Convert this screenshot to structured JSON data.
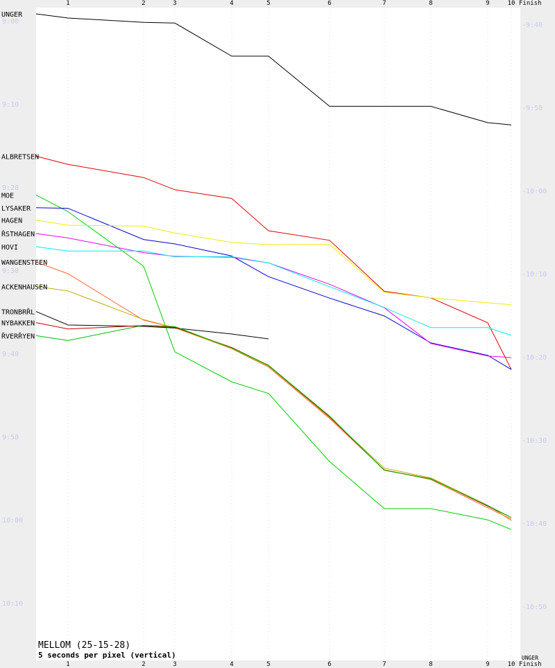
{
  "chart_data": {
    "type": "line",
    "title": "MELLOM (25-15-28)",
    "subtitle": "5 seconds per pixel (vertical)",
    "x_ticks": [
      "1",
      "2",
      "3",
      "4",
      "5",
      "6",
      "7",
      "8",
      "9",
      "10",
      "Finish"
    ],
    "y_left_ticks": [
      "9:00",
      "9:10",
      "9:20",
      "9:30",
      "9:40",
      "9:50",
      "10:00",
      "10:10"
    ],
    "y_right_ticks": [
      "9:40",
      "9:50",
      "10:00",
      "10:10",
      "10:20",
      "10:30",
      "10:40",
      "10:50"
    ],
    "y_left_range_seconds": [
      32300,
      36900
    ],
    "background_colors": {
      "page": "#ffffff",
      "margins": "#eeeeee",
      "grid": "#dddddd",
      "tick_text": "#c8c8ee"
    },
    "series": [
      {
        "name": "UNGER",
        "color": "#000000",
        "values": [
          32345,
          32375,
          32406,
          32411,
          32650,
          32650,
          33012,
          33012,
          33012,
          33130,
          33146
        ]
      },
      {
        "name": "ALBRETSEN",
        "color": "#dd0000",
        "values": [
          33372,
          33431,
          33526,
          33614,
          33677,
          33910,
          33979,
          34347,
          34394,
          34574,
          34911
        ]
      },
      {
        "name": "MOE",
        "color": "#00cc00",
        "values": [
          33652,
          33772,
          34166,
          34784,
          35000,
          35084,
          35575,
          35915,
          35915,
          35996,
          36066
        ]
      },
      {
        "name": "LYSAKER",
        "color": "#0000cc",
        "values": [
          33744,
          33748,
          33973,
          34005,
          34092,
          34241,
          34396,
          34525,
          34719,
          34809,
          34911
        ]
      },
      {
        "name": "HAGEN",
        "color": "#eeee00",
        "values": [
          33833,
          33870,
          33876,
          33926,
          33994,
          34010,
          34009,
          34354,
          34394,
          34430,
          34444
        ]
      },
      {
        "name": "ŘSTHAGEN",
        "color": "#ee00ee",
        "values": [
          33930,
          33962,
          34068,
          34095,
          34101,
          34142,
          34296,
          34466,
          34723,
          34814,
          34825
        ]
      },
      {
        "name": "HOVI",
        "color": "#00eeee",
        "values": [
          34025,
          34056,
          34056,
          34098,
          34096,
          34142,
          34314,
          34464,
          34609,
          34609,
          34665
        ]
      },
      {
        "name": "WANGENSTEEN",
        "color": "#ff6633",
        "values": [
          34136,
          34220,
          34555,
          34610,
          34761,
          34893,
          35264,
          35635,
          35705,
          35909,
          35991
        ]
      },
      {
        "name": "ACKENHAUSEN",
        "color": "#bbaa00",
        "values": [
          34312,
          34344,
          34551,
          34609,
          34758,
          34886,
          35256,
          35623,
          35693,
          35891,
          36001
        ]
      },
      {
        "name": "TRONBRŘL",
        "color": "#000000",
        "values": [
          34493,
          34590,
          34600,
          34612,
          34655,
          34690
        ]
      },
      {
        "name": "NYBAKKEN",
        "color": "#cc0000",
        "values": [
          34573,
          34619,
          34594,
          34607,
          34752,
          34881,
          35252,
          35638,
          35699,
          35898,
          35979
        ]
      },
      {
        "name": "ŘVERŘYEN",
        "color": "#00bb00",
        "values": [
          34667,
          34702,
          34592,
          34601,
          34756,
          34880,
          35247,
          35638,
          35701,
          35893,
          35979
        ]
      }
    ]
  }
}
